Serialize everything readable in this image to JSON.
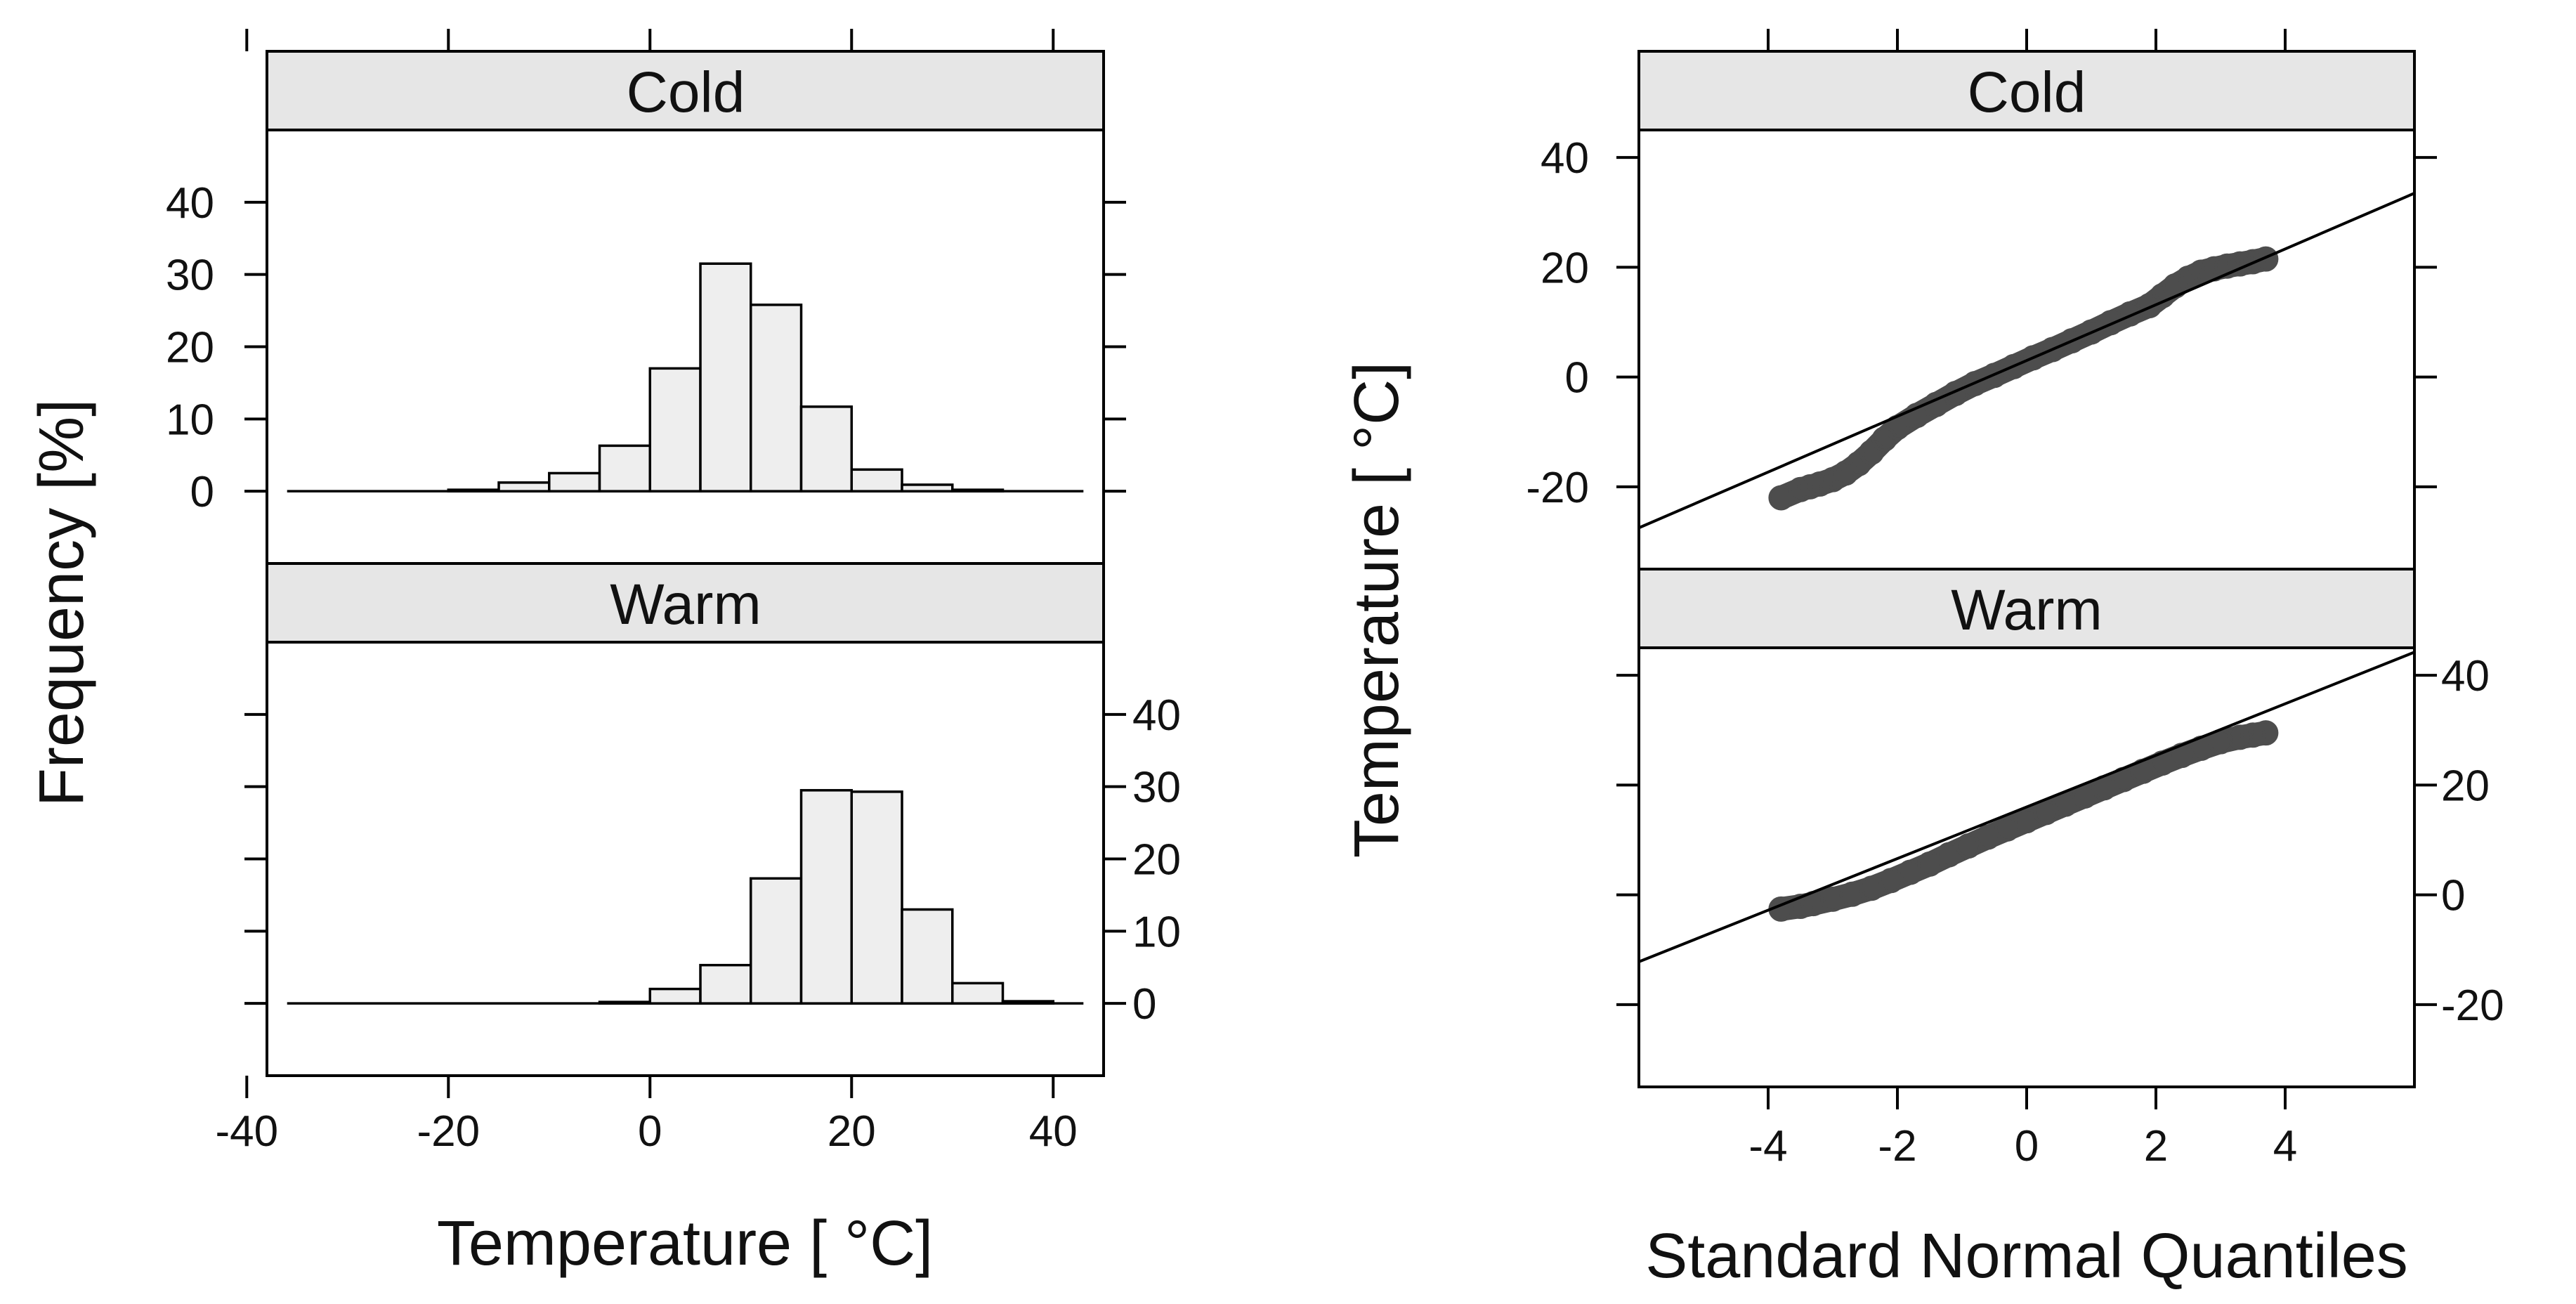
{
  "colors": {
    "strip": "#e6e6e6",
    "bar": "#eeeeee",
    "points": "#4d4d4d",
    "line": "#000000"
  },
  "chart_data": [
    {
      "type": "bar",
      "subtype": "histogram",
      "panels": [
        {
          "name": "Cold",
          "bins": [
            -20,
            -15,
            -10,
            -5,
            0,
            5,
            10,
            15,
            20,
            25,
            30
          ],
          "values": [
            0.2,
            1.2,
            2.5,
            6.3,
            17.0,
            31.5,
            25.8,
            11.7,
            3.0,
            0.9,
            0.2
          ]
        },
        {
          "name": "Warm",
          "bins": [
            -5,
            0,
            5,
            10,
            15,
            20,
            25,
            30,
            35
          ],
          "values": [
            0.2,
            2.0,
            5.3,
            17.3,
            29.5,
            29.3,
            13.0,
            2.8,
            0.3
          ]
        }
      ],
      "bin_width": 5,
      "baseline_extent": [
        -36,
        43
      ],
      "xlim": [
        -38,
        45
      ],
      "ylim": [
        -10,
        50
      ],
      "x_ticks": [
        "-40",
        "-20",
        "0",
        "20",
        "40"
      ],
      "y_ticks": [
        "0",
        "10",
        "20",
        "30",
        "40"
      ],
      "xlabel": "Temperature [ °C]",
      "ylabel": "Frequency [%]"
    },
    {
      "type": "scatter",
      "subtype": "qq-plot",
      "panels": [
        {
          "name": "Cold",
          "ref_slope": 5.08,
          "ref_intercept": 3.0,
          "quantile_range": [
            -3.8,
            3.8
          ],
          "points": [
            [
              -3.8,
              -22.0
            ],
            [
              -3.5,
              -20.5
            ],
            [
              -3.35,
              -20.0
            ],
            [
              -3.2,
              -19.5
            ],
            [
              -3.0,
              -18.7
            ],
            [
              -2.8,
              -17.5
            ],
            [
              -2.6,
              -15.8
            ],
            [
              -2.4,
              -13.7
            ],
            [
              -2.2,
              -11.3
            ],
            [
              -2.0,
              -9.2
            ],
            [
              -1.7,
              -7.0
            ],
            [
              -1.4,
              -5.0
            ],
            [
              -1.1,
              -3.0
            ],
            [
              -0.8,
              -1.2
            ],
            [
              -0.5,
              0.3
            ],
            [
              -0.2,
              1.9
            ],
            [
              0.1,
              3.5
            ],
            [
              0.4,
              5.0
            ],
            [
              0.7,
              6.6
            ],
            [
              1.0,
              8.2
            ],
            [
              1.3,
              9.9
            ],
            [
              1.6,
              11.5
            ],
            [
              1.9,
              13.0
            ],
            [
              2.1,
              14.8
            ],
            [
              2.3,
              16.6
            ],
            [
              2.5,
              18.0
            ],
            [
              2.7,
              19.1
            ],
            [
              2.9,
              19.7
            ],
            [
              3.1,
              20.2
            ],
            [
              3.3,
              20.6
            ],
            [
              3.5,
              21.0
            ],
            [
              3.7,
              21.5
            ]
          ]
        },
        {
          "name": "Warm",
          "ref_slope": 4.7,
          "ref_intercept": 16.0,
          "quantile_range": [
            -3.8,
            3.8
          ],
          "points": [
            [
              -3.8,
              -2.6
            ],
            [
              -3.5,
              -2.1
            ],
            [
              -3.3,
              -1.6
            ],
            [
              -3.0,
              -0.8
            ],
            [
              -2.7,
              0.1
            ],
            [
              -2.4,
              1.2
            ],
            [
              -2.1,
              2.6
            ],
            [
              -1.8,
              4.1
            ],
            [
              -1.5,
              5.6
            ],
            [
              -1.2,
              7.3
            ],
            [
              -0.9,
              8.9
            ],
            [
              -0.6,
              10.5
            ],
            [
              -0.3,
              12.0
            ],
            [
              0.0,
              13.5
            ],
            [
              0.3,
              15.0
            ],
            [
              0.6,
              16.5
            ],
            [
              0.9,
              18.0
            ],
            [
              1.2,
              19.5
            ],
            [
              1.5,
              21.0
            ],
            [
              1.8,
              22.5
            ],
            [
              2.1,
              24.0
            ],
            [
              2.4,
              25.4
            ],
            [
              2.7,
              26.7
            ],
            [
              3.0,
              27.9
            ],
            [
              3.3,
              28.7
            ],
            [
              3.5,
              29.1
            ],
            [
              3.7,
              29.5
            ]
          ]
        }
      ],
      "xlim": [
        -6,
        6
      ],
      "ylim": [
        -35,
        45
      ],
      "x_ticks": [
        "-4",
        "-2",
        "0",
        "2",
        "4"
      ],
      "y_ticks": [
        "-20",
        "0",
        "20",
        "40"
      ],
      "xlabel": "Standard Normal Quantiles",
      "ylabel": "Temperature [ °C]"
    }
  ]
}
